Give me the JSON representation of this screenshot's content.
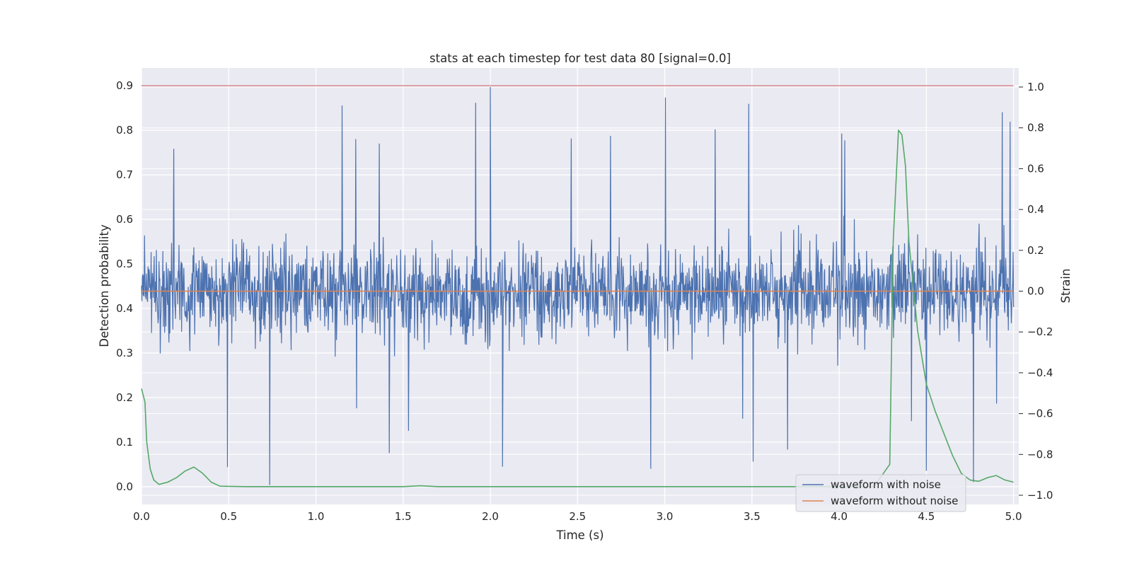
{
  "chart_data": {
    "type": "line",
    "title": "stats at each timestep for test data 80 [signal=0.0]",
    "xlabel": "Time (s)",
    "ylabel_left": "Detection probability",
    "ylabel_right": "Strain",
    "xlim": [
      0.0,
      5.03
    ],
    "ylim_left": [
      -0.04,
      0.94
    ],
    "ylim_right": [
      -1.0,
      1.0
    ],
    "xticks": [
      "0.0",
      "0.5",
      "1.0",
      "1.5",
      "2.0",
      "2.5",
      "3.0",
      "3.5",
      "4.0",
      "4.5",
      "5.0"
    ],
    "yticks_left": [
      "0.0",
      "0.1",
      "0.2",
      "0.3",
      "0.4",
      "0.5",
      "0.6",
      "0.7",
      "0.8",
      "0.9"
    ],
    "yticks_right": [
      "−1.0",
      "−0.8",
      "−0.6",
      "−0.4",
      "−0.2",
      "0.0",
      "0.2",
      "0.4",
      "0.6",
      "0.8",
      "1.0"
    ],
    "grid": true,
    "legend_position": "lower-right",
    "series": [
      {
        "name": "waveform with noise",
        "axis": "right",
        "color": "#4c72b0",
        "noise": {
          "n_points": 2000,
          "x_start": 0.0,
          "x_end": 5.0,
          "typical_range": [
            -0.35,
            0.35
          ],
          "min": -0.98,
          "max": 1.0,
          "seed": 80
        }
      },
      {
        "name": "waveform without noise",
        "axis": "right",
        "color": "#dd8452",
        "x": [
          0.0,
          5.0
        ],
        "y": [
          0.0,
          0.0
        ]
      },
      {
        "axis": "left",
        "color": "#55a868",
        "x": [
          0.0,
          0.02,
          0.03,
          0.05,
          0.07,
          0.1,
          0.15,
          0.2,
          0.25,
          0.3,
          0.35,
          0.4,
          0.45,
          0.6,
          1.0,
          1.5,
          1.6,
          1.7,
          2.0,
          3.0,
          4.0,
          4.2,
          4.29,
          4.31,
          4.34,
          4.36,
          4.38,
          4.4,
          4.45,
          4.5,
          4.55,
          4.6,
          4.65,
          4.7,
          4.75,
          4.8,
          4.85,
          4.9,
          4.95,
          5.0
        ],
        "y": [
          0.22,
          0.19,
          0.1,
          0.04,
          0.015,
          0.005,
          0.01,
          0.02,
          0.035,
          0.044,
          0.03,
          0.01,
          0.001,
          0.0,
          0.0,
          0.0,
          0.002,
          0.0,
          0.0,
          0.0,
          0.0,
          0.0,
          0.05,
          0.55,
          0.8,
          0.79,
          0.72,
          0.55,
          0.35,
          0.23,
          0.17,
          0.12,
          0.07,
          0.03,
          0.015,
          0.012,
          0.02,
          0.025,
          0.015,
          0.01
        ]
      },
      {
        "axis": "left",
        "color": "#c44e52",
        "x": [
          0.0,
          5.0
        ],
        "y": [
          0.9,
          0.9
        ]
      }
    ]
  }
}
